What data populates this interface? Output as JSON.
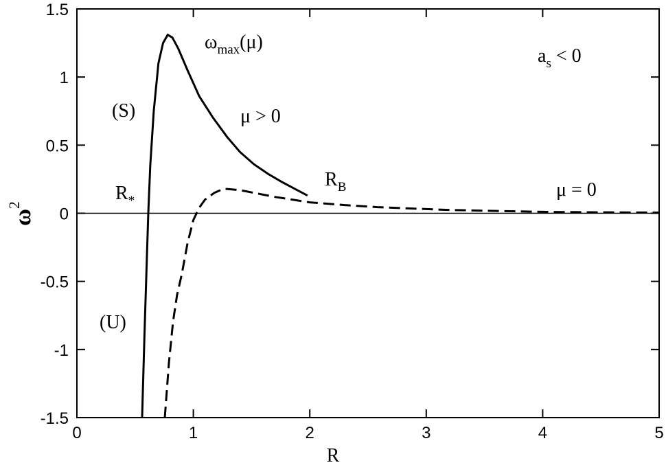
{
  "chart_data": {
    "type": "line",
    "xlabel": "R",
    "ylabel": {
      "text": "ω",
      "sup": "2"
    },
    "xlim": [
      0,
      5
    ],
    "ylim": [
      -1.5,
      1.5
    ],
    "xticks": [
      0,
      1,
      2,
      3,
      4,
      5
    ],
    "yticks": [
      -1.5,
      -1,
      -0.5,
      0,
      0.5,
      1,
      1.5
    ],
    "zero_line": true,
    "series": [
      {
        "name": "μ > 0",
        "color": "#000000",
        "dash": false,
        "x": [
          0.56,
          0.58,
          0.6,
          0.613,
          0.63,
          0.66,
          0.7,
          0.74,
          0.78,
          0.82,
          0.87,
          0.95,
          1.05,
          1.17,
          1.29,
          1.4,
          1.52,
          1.64,
          1.76,
          1.87,
          1.98
        ],
        "values": [
          -1.5,
          -0.9,
          -0.35,
          0,
          0.35,
          0.75,
          1.1,
          1.25,
          1.31,
          1.29,
          1.21,
          1.05,
          0.86,
          0.7,
          0.56,
          0.45,
          0.36,
          0.29,
          0.23,
          0.18,
          0.13
        ]
      },
      {
        "name": "μ = 0",
        "color": "#000000",
        "dash": true,
        "x": [
          0.755,
          0.79,
          0.825,
          0.86,
          0.9,
          0.95,
          1.0,
          1.05,
          1.1,
          1.18,
          1.26,
          1.4,
          1.55,
          1.7,
          2.0,
          2.3,
          2.58,
          3.17,
          3.6,
          4.05,
          4.5,
          5.0
        ],
        "values": [
          -1.5,
          -1.1,
          -0.8,
          -0.6,
          -0.45,
          -0.22,
          -0.05,
          0.04,
          0.1,
          0.15,
          0.18,
          0.17,
          0.145,
          0.12,
          0.08,
          0.06,
          0.045,
          0.025,
          0.017,
          0.01,
          0.007,
          0.005
        ]
      }
    ],
    "annotations": [
      {
        "text": "ω",
        "sub": "max",
        "after": "(μ)"
      },
      {
        "text": "a",
        "sub": "s",
        "after": " < 0"
      },
      {
        "text": "(S)"
      },
      {
        "text": "R",
        "sub": "B"
      },
      {
        "text": "R",
        "sub": "*"
      },
      {
        "text": "(U)"
      }
    ]
  }
}
